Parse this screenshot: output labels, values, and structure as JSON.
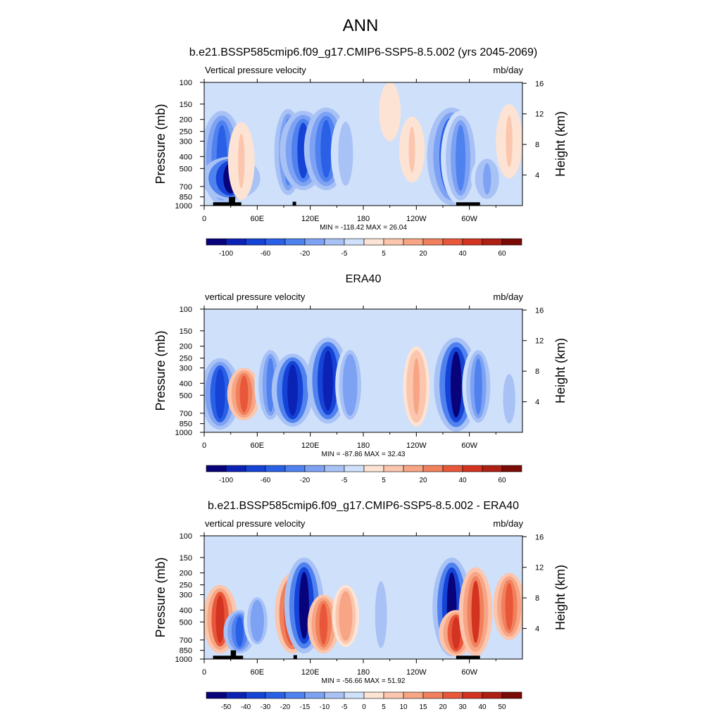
{
  "page_title": "ANN",
  "chart_data": [
    {
      "type": "heatmap",
      "title": "b.e21.BSSP585cmip6.f09_g17.CMIP6-SSP5-8.5.002 (yrs 2045-2069)",
      "left_string": "Vertical pressure velocity",
      "right_string": "mb/day",
      "ylabel": "Pressure (mb)",
      "y2label": "Height (km)",
      "x_ticks": [
        "0",
        "60E",
        "120E",
        "180",
        "120W",
        "60W"
      ],
      "x_values": [
        0,
        60,
        120,
        180,
        240,
        300
      ],
      "xlim": [
        0,
        360
      ],
      "y_ticks": [
        "100",
        "150",
        "200",
        "250",
        "300",
        "400",
        "500",
        "700",
        "850",
        "1000"
      ],
      "y_values": [
        100,
        150,
        200,
        250,
        300,
        400,
        500,
        700,
        850,
        1000
      ],
      "ylim": [
        100,
        1000
      ],
      "y_scale": "log",
      "y2_ticks": [
        "16",
        "12",
        "8",
        "4"
      ],
      "y2_values": [
        16,
        12,
        8,
        4
      ],
      "stats": "MIN = -118.42  MAX =  26.04",
      "colorbar": {
        "labels": [
          "-100",
          "-60",
          "-20",
          "-5",
          "5",
          "20",
          "40",
          "60"
        ],
        "colors": [
          "#08037a",
          "#0c22b5",
          "#1443d6",
          "#2a60e6",
          "#4f81ef",
          "#7ea2f3",
          "#a8c2f6",
          "#cfe0fb",
          "#fde3d3",
          "#fbc6ad",
          "#f7a584",
          "#f1805c",
          "#e8573a",
          "#d33321",
          "#ae1f14",
          "#7a0b06"
        ]
      },
      "features": [
        {
          "lon": 20,
          "p_top": 170,
          "p_bot": 990,
          "v": -45
        },
        {
          "lon": 30,
          "p_top": 400,
          "p_bot": 900,
          "v": -80
        },
        {
          "lon": 42,
          "p_top": 210,
          "p_bot": 900,
          "v": 14
        },
        {
          "lon": 95,
          "p_top": 150,
          "p_bot": 900,
          "v": -35
        },
        {
          "lon": 112,
          "p_top": 170,
          "p_bot": 750,
          "v": -55
        },
        {
          "lon": 138,
          "p_top": 160,
          "p_bot": 750,
          "v": -50
        },
        {
          "lon": 160,
          "p_top": 180,
          "p_bot": 800,
          "v": -20
        },
        {
          "lon": 235,
          "p_top": 190,
          "p_bot": 650,
          "v": 12
        },
        {
          "lon": 280,
          "p_top": 160,
          "p_bot": 990,
          "v": -60
        },
        {
          "lon": 290,
          "p_top": 170,
          "p_bot": 990,
          "v": -40
        },
        {
          "lon": 320,
          "p_top": 400,
          "p_bot": 920,
          "v": -25
        },
        {
          "lon": 345,
          "p_top": 150,
          "p_bot": 600,
          "v": 14
        },
        {
          "lon": 210,
          "p_top": 100,
          "p_bot": 300,
          "v": 4
        }
      ],
      "terrain": [
        {
          "lon0": 10,
          "lon1": 42,
          "p": 940
        },
        {
          "lon0": 28,
          "lon1": 35,
          "p": 850
        },
        {
          "lon0": 100,
          "lon1": 104,
          "p": 930
        },
        {
          "lon0": 285,
          "lon1": 312,
          "p": 940
        }
      ]
    },
    {
      "type": "heatmap",
      "title": "ERA40",
      "left_string": "vertical pressure velocity",
      "right_string": "mb/day",
      "ylabel": "Pressure (mb)",
      "y2label": "Height (km)",
      "x_ticks": [
        "0",
        "60E",
        "120E",
        "180",
        "120W",
        "60W"
      ],
      "x_values": [
        0,
        60,
        120,
        180,
        240,
        300
      ],
      "xlim": [
        0,
        360
      ],
      "y_ticks": [
        "100",
        "150",
        "200",
        "250",
        "300",
        "400",
        "500",
        "700",
        "850",
        "1000"
      ],
      "y_values": [
        100,
        150,
        200,
        250,
        300,
        400,
        500,
        700,
        850,
        1000
      ],
      "ylim": [
        100,
        1000
      ],
      "y_scale": "log",
      "y2_ticks": [
        "16",
        "12",
        "8",
        "4"
      ],
      "y2_values": [
        16,
        12,
        8,
        4
      ],
      "stats": "MIN = -87.86  MAX =  32.43",
      "colorbar": {
        "labels": [
          "-100",
          "-60",
          "-20",
          "-5",
          "5",
          "20",
          "40",
          "60"
        ],
        "colors": [
          "#08037a",
          "#0c22b5",
          "#1443d6",
          "#2a60e6",
          "#4f81ef",
          "#7ea2f3",
          "#a8c2f6",
          "#cfe0fb",
          "#fde3d3",
          "#fbc6ad",
          "#f7a584",
          "#f1805c",
          "#e8573a",
          "#d33321",
          "#ae1f14",
          "#7a0b06"
        ]
      },
      "features": [
        {
          "lon": 18,
          "p_top": 250,
          "p_bot": 950,
          "v": -40
        },
        {
          "lon": 45,
          "p_top": 300,
          "p_bot": 800,
          "v": 28
        },
        {
          "lon": 75,
          "p_top": 200,
          "p_bot": 850,
          "v": -25
        },
        {
          "lon": 100,
          "p_top": 230,
          "p_bot": 900,
          "v": -45
        },
        {
          "lon": 140,
          "p_top": 170,
          "p_bot": 850,
          "v": -45
        },
        {
          "lon": 165,
          "p_top": 200,
          "p_bot": 850,
          "v": -20
        },
        {
          "lon": 240,
          "p_top": 200,
          "p_bot": 900,
          "v": 14
        },
        {
          "lon": 285,
          "p_top": 170,
          "p_bot": 990,
          "v": -50
        },
        {
          "lon": 310,
          "p_top": 200,
          "p_bot": 900,
          "v": -25
        },
        {
          "lon": 345,
          "p_top": 300,
          "p_bot": 950,
          "v": -10
        }
      ],
      "terrain": []
    },
    {
      "type": "heatmap",
      "title": "b.e21.BSSP585cmip6.f09_g17.CMIP6-SSP5-8.5.002 - ERA40",
      "left_string": "vertical pressure velocity",
      "right_string": "mb/day",
      "ylabel": "Pressure (mb)",
      "y2label": "Height (km)",
      "x_ticks": [
        "0",
        "60E",
        "120E",
        "180",
        "120W",
        "60W"
      ],
      "x_values": [
        0,
        60,
        120,
        180,
        240,
        300
      ],
      "xlim": [
        0,
        360
      ],
      "y_ticks": [
        "100",
        "150",
        "200",
        "250",
        "300",
        "400",
        "500",
        "700",
        "850",
        "1000"
      ],
      "y_values": [
        100,
        150,
        200,
        250,
        300,
        400,
        500,
        700,
        850,
        1000
      ],
      "ylim": [
        100,
        1000
      ],
      "y_scale": "log",
      "y2_ticks": [
        "16",
        "12",
        "8",
        "4"
      ],
      "y2_values": [
        16,
        12,
        8,
        4
      ],
      "stats": "MIN = -56.66  MAX =  51.92",
      "colorbar": {
        "labels": [
          "-50",
          "-40",
          "-30",
          "-20",
          "-15",
          "-10",
          "-5",
          "0",
          "5",
          "10",
          "15",
          "20",
          "30",
          "40",
          "50"
        ],
        "colors": [
          "#08037a",
          "#0c22b5",
          "#1443d6",
          "#2a60e6",
          "#4f81ef",
          "#7ea2f3",
          "#a8c2f6",
          "#cfe0fb",
          "#fde3d3",
          "#fbc6ad",
          "#f7a584",
          "#f1805c",
          "#e8573a",
          "#d33321",
          "#ae1f14",
          "#7a0b06"
        ]
      },
      "features": [
        {
          "lon": 18,
          "p_top": 250,
          "p_bot": 900,
          "v": 30
        },
        {
          "lon": 40,
          "p_top": 400,
          "p_bot": 900,
          "v": -25
        },
        {
          "lon": 60,
          "p_top": 300,
          "p_bot": 800,
          "v": -15
        },
        {
          "lon": 100,
          "p_top": 200,
          "p_bot": 900,
          "v": 32
        },
        {
          "lon": 113,
          "p_top": 150,
          "p_bot": 900,
          "v": -40
        },
        {
          "lon": 135,
          "p_top": 300,
          "p_bot": 900,
          "v": 25
        },
        {
          "lon": 160,
          "p_top": 250,
          "p_bot": 800,
          "v": 15
        },
        {
          "lon": 200,
          "p_top": 200,
          "p_bot": 950,
          "v": -8
        },
        {
          "lon": 280,
          "p_top": 150,
          "p_bot": 950,
          "v": -38
        },
        {
          "lon": 285,
          "p_top": 400,
          "p_bot": 950,
          "v": 30
        },
        {
          "lon": 307,
          "p_top": 180,
          "p_bot": 950,
          "v": 28
        },
        {
          "lon": 345,
          "p_top": 200,
          "p_bot": 700,
          "v": 25
        }
      ],
      "terrain": [
        {
          "lon0": 10,
          "lon1": 44,
          "p": 940
        },
        {
          "lon0": 30,
          "lon1": 36,
          "p": 850
        },
        {
          "lon0": 101,
          "lon1": 105,
          "p": 930
        },
        {
          "lon0": 285,
          "lon1": 312,
          "p": 940
        }
      ]
    }
  ]
}
